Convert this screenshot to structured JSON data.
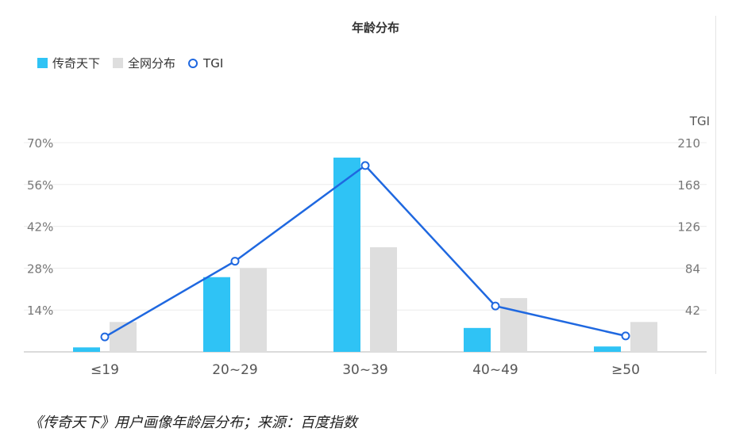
{
  "chart_data": {
    "type": "bar",
    "title": "年龄分布",
    "categories": [
      "≤19",
      "20~29",
      "30~39",
      "40~49",
      "≥50"
    ],
    "series": [
      {
        "name": "传奇天下",
        "kind": "bar",
        "axis": "left",
        "color": "#2fc3f5",
        "values": [
          1.5,
          25,
          65,
          8,
          1.8
        ]
      },
      {
        "name": "全网分布",
        "kind": "bar",
        "axis": "left",
        "color": "#dedede",
        "values": [
          10,
          28,
          35,
          18,
          10
        ]
      },
      {
        "name": "TGI",
        "kind": "line",
        "axis": "right",
        "color": "#1f68e0",
        "values": [
          15,
          91,
          187,
          46,
          16
        ]
      }
    ],
    "y_left": {
      "ticks": [
        "70%",
        "56%",
        "42%",
        "28%",
        "14%"
      ],
      "tick_values": [
        70,
        56,
        42,
        28,
        14
      ],
      "range": [
        0,
        70
      ]
    },
    "y_right": {
      "label": "TGI",
      "ticks": [
        "210",
        "168",
        "126",
        "84",
        "42"
      ],
      "tick_values": [
        210,
        168,
        126,
        84,
        42
      ],
      "range": [
        0,
        210
      ]
    },
    "grid": true,
    "legend_position": "top-left"
  },
  "caption": "《传奇天下》用户画像年龄层分布；来源：百度指数"
}
